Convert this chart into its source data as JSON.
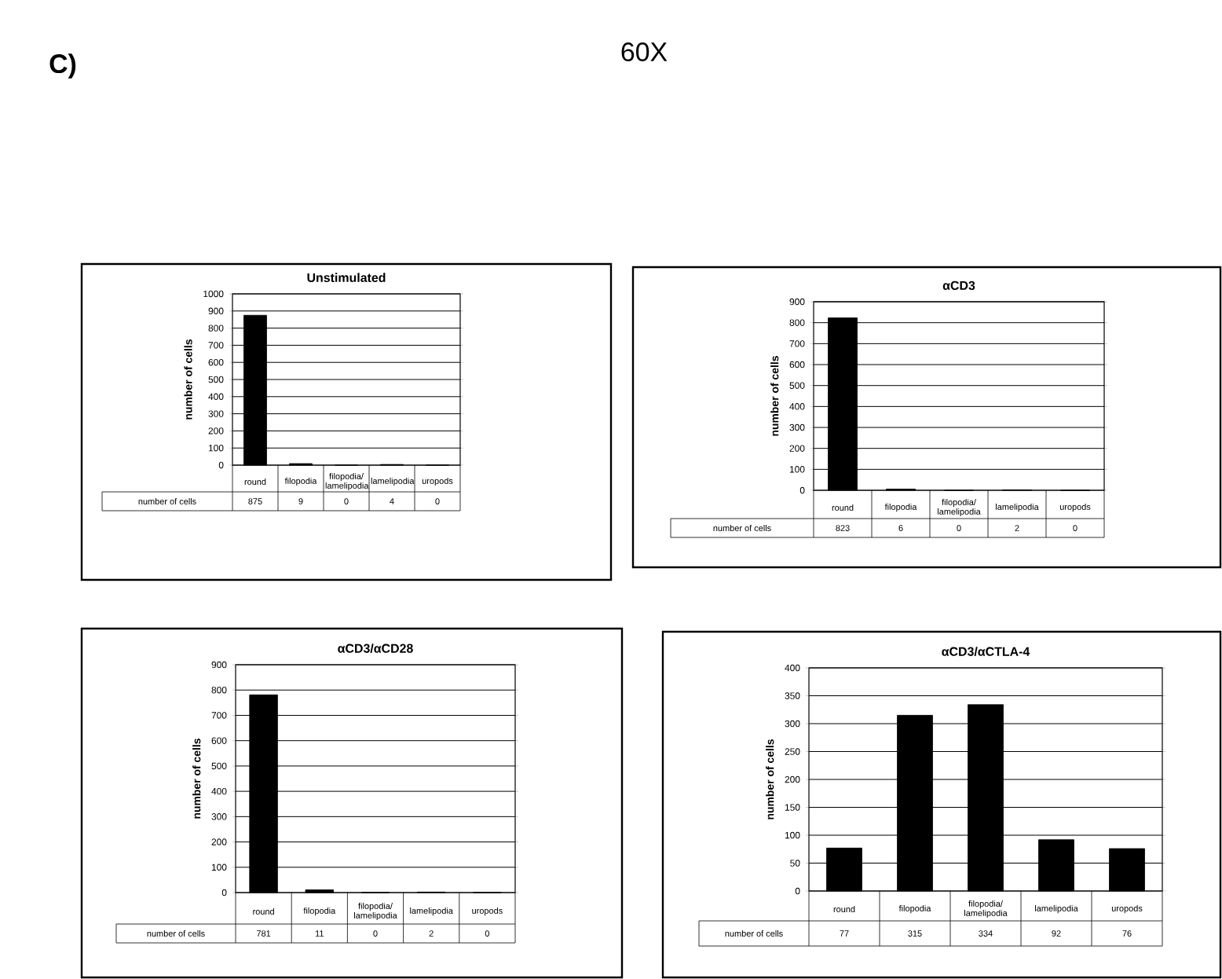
{
  "chart_data": [
    {
      "type": "bar",
      "title": "Unstimulated",
      "ylabel": "number of cells",
      "categories": [
        "round",
        "filopodia",
        "filopodia/ lamelipodia",
        "lamelipodia",
        "uropods"
      ],
      "values": [
        875,
        9,
        0,
        4,
        0
      ],
      "color": "#000000",
      "ylim": [
        0,
        1000
      ],
      "yticks": [
        0,
        100,
        200,
        300,
        400,
        500,
        600,
        700,
        800,
        900,
        1000
      ],
      "grid": "y",
      "data_labels": true,
      "annotations": [
        "C)",
        "60X",
        "number of cells"
      ]
    },
    {
      "type": "bar",
      "title": "αCD3",
      "ylabel": "number of cells",
      "categories": [
        "round",
        "filopodia",
        "filopodia/ lamelipodia",
        "lamelipodia",
        "uropods"
      ],
      "values": [
        823,
        6,
        0,
        2,
        0
      ],
      "color": "#000000",
      "ylim": [
        0,
        900
      ],
      "yticks": [
        0,
        100,
        200,
        300,
        400,
        500,
        600,
        700,
        800,
        900
      ],
      "grid": "y",
      "data_labels": true,
      "annotations": [
        "number of cells"
      ]
    },
    {
      "type": "bar",
      "title": "αCD3/αCD28",
      "ylabel": "number of cells",
      "categories": [
        "round",
        "filopodia",
        "filopodia/ lamelipodia",
        "lamelipodia",
        "uropods"
      ],
      "values": [
        781,
        11,
        0,
        2,
        0
      ],
      "color": "#000000",
      "ylim": [
        0,
        900
      ],
      "yticks": [
        0,
        100,
        200,
        300,
        400,
        500,
        600,
        700,
        800,
        900
      ],
      "grid": "y",
      "data_labels": true,
      "annotations": [
        "number of cells"
      ]
    },
    {
      "type": "bar",
      "title": "αCD3/αCTLA-4",
      "ylabel": "number of cells",
      "categories": [
        "round",
        "filopodia",
        "filopodia/ lamelipodia",
        "lamelipodia",
        "uropods"
      ],
      "values": [
        77,
        315,
        334,
        92,
        76
      ],
      "color": "#000000",
      "ylim": [
        0,
        400
      ],
      "yticks": [
        0,
        50,
        100,
        150,
        200,
        250,
        300,
        350,
        400
      ],
      "grid": "y",
      "data_labels": true,
      "annotations": [
        "number of cells"
      ]
    }
  ]
}
